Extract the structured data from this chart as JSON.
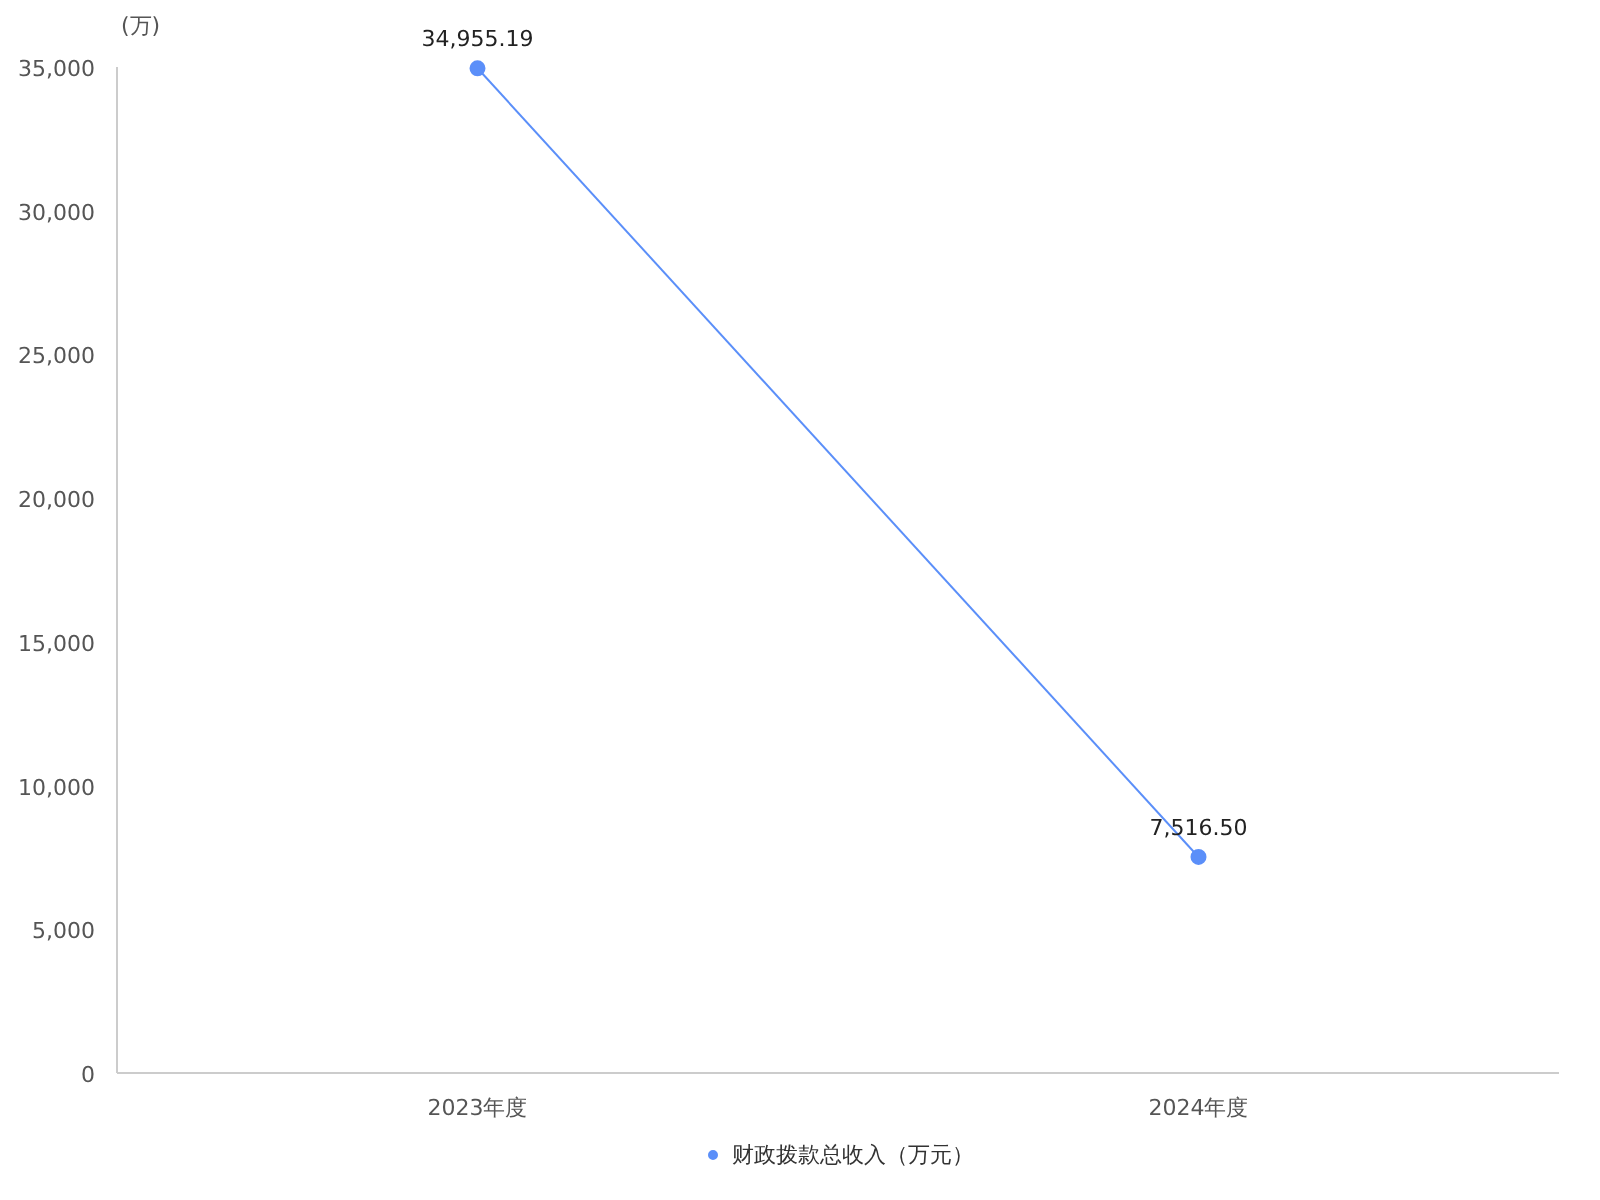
{
  "chart_data": {
    "type": "line",
    "ylabel": "(万)",
    "categories": [
      "2023年度",
      "2024年度"
    ],
    "series": [
      {
        "name": "财政拨款总收入（万元）",
        "color": "#5b8ff9",
        "values": [
          34955.19,
          7516.5
        ]
      }
    ],
    "value_labels": [
      "34,955.19",
      "7,516.50"
    ],
    "ylim": [
      0,
      35000
    ],
    "yticks": [
      {
        "value": 0,
        "label": "0"
      },
      {
        "value": 5000,
        "label": "5,000"
      },
      {
        "value": 10000,
        "label": "10,000"
      },
      {
        "value": 15000,
        "label": "15,000"
      },
      {
        "value": 20000,
        "label": "20,000"
      },
      {
        "value": 25000,
        "label": "25,000"
      },
      {
        "value": 30000,
        "label": "30,000"
      },
      {
        "value": 35000,
        "label": "35,000"
      }
    ],
    "grid": false,
    "legend": "bottom",
    "marker": "circle",
    "line_style": "solid"
  }
}
